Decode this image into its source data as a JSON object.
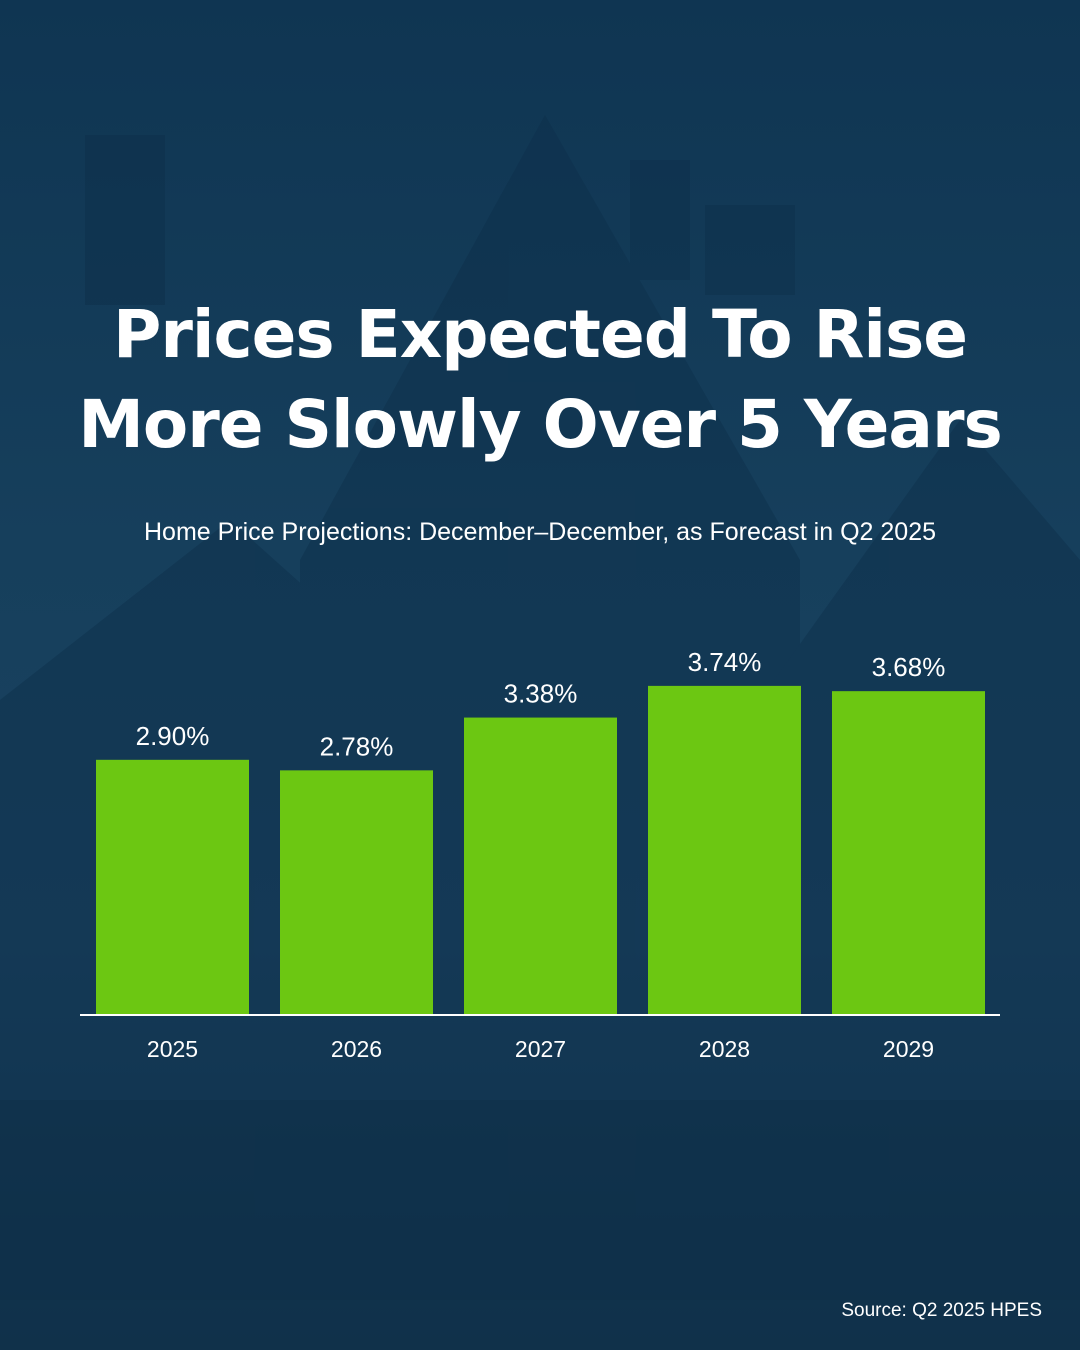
{
  "title_line1": "Prices Expected To Rise",
  "title_line2": "More Slowly Over 5 Years",
  "subtitle": "Home Price Projections: December–December, as Forecast in Q2 2025",
  "source": "Source: Q2 2025 HPES",
  "colors": {
    "bar": "#6cc712",
    "background": "#163f5c",
    "text": "#ffffff"
  },
  "chart_data": {
    "type": "bar",
    "title": "Home Price Projections: December–December, as Forecast in Q2 2025",
    "categories": [
      "2025",
      "2026",
      "2027",
      "2028",
      "2029"
    ],
    "values": [
      2.9,
      2.78,
      3.38,
      3.74,
      3.68
    ],
    "labels": [
      "2.90%",
      "2.78%",
      "3.38%",
      "3.74%",
      "3.68%"
    ],
    "xlabel": "",
    "ylabel": "",
    "ylim": [
      0,
      4
    ],
    "grid": false
  }
}
